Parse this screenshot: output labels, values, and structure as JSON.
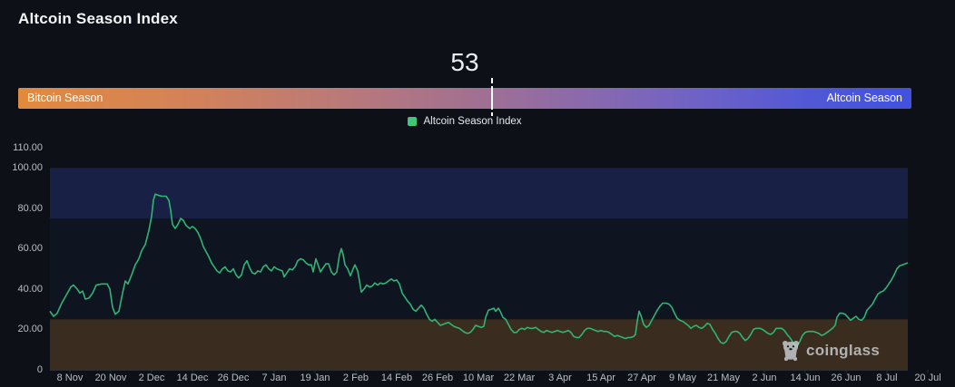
{
  "page": {
    "title": "Altcoin Season Index",
    "background": "#0d1117"
  },
  "gauge": {
    "value": "53",
    "left_label": "Bitcoin Season",
    "right_label": "Altcoin Season",
    "marker_percent": 53,
    "gradient_left_color": "#e18a3e",
    "gradient_right_color": "#4152df"
  },
  "legend": {
    "label": "Altcoin Season Index",
    "swatch_color": "#3ec878"
  },
  "watermark": {
    "text": "coinglass"
  },
  "chart_data": {
    "type": "line",
    "title": "Altcoin Season Index",
    "series_name": "Altcoin Season Index",
    "line_color": "#30b474",
    "ylim": [
      0,
      110
    ],
    "grid": false,
    "y_ticks": [
      {
        "label": "110.00",
        "value": 110
      },
      {
        "label": "100.00",
        "value": 100
      },
      {
        "label": "80.00",
        "value": 80
      },
      {
        "label": "60.00",
        "value": 60
      },
      {
        "label": "40.00",
        "value": 40
      },
      {
        "label": "20.00",
        "value": 20
      },
      {
        "label": "0",
        "value": 0
      }
    ],
    "x_tick_labels": [
      "8 Nov",
      "20 Nov",
      "2 Dec",
      "14 Dec",
      "26 Dec",
      "7 Jan",
      "19 Jan",
      "2 Feb",
      "14 Feb",
      "26 Feb",
      "10 Mar",
      "22 Mar",
      "3 Apr",
      "15 Apr",
      "27 Apr",
      "9 May",
      "21 May",
      "2 Jun",
      "14 Jun",
      "26 Jun",
      "8 Jul",
      "20 Jul"
    ],
    "bands": [
      {
        "name": "altcoin-zone",
        "from": 75,
        "to": 100,
        "color": "#182145"
      },
      {
        "name": "bitcoin-zone",
        "from": 0,
        "to": 25,
        "color": "#3a2c1e"
      }
    ],
    "plot_bg_color": "#0e1420",
    "x_span_units": 945,
    "points": [
      [
        0,
        29
      ],
      [
        4,
        26.5
      ],
      [
        8,
        28
      ],
      [
        13,
        33
      ],
      [
        18,
        37
      ],
      [
        23,
        41
      ],
      [
        26,
        42
      ],
      [
        30,
        40
      ],
      [
        33,
        38
      ],
      [
        36,
        39
      ],
      [
        39,
        35
      ],
      [
        43,
        35.5
      ],
      [
        47,
        38
      ],
      [
        51,
        42
      ],
      [
        57,
        42.5
      ],
      [
        63,
        42.5
      ],
      [
        66,
        40
      ],
      [
        69,
        31
      ],
      [
        72,
        27.5
      ],
      [
        76,
        29
      ],
      [
        80,
        38
      ],
      [
        83,
        44
      ],
      [
        86,
        42.5
      ],
      [
        90,
        47
      ],
      [
        94,
        52
      ],
      [
        98,
        55
      ],
      [
        101,
        59
      ],
      [
        105,
        62
      ],
      [
        109,
        69
      ],
      [
        112,
        76
      ],
      [
        114,
        84
      ],
      [
        116,
        87
      ],
      [
        119,
        86.5
      ],
      [
        123,
        86
      ],
      [
        128,
        86
      ],
      [
        131,
        84
      ],
      [
        133,
        79
      ],
      [
        135,
        72
      ],
      [
        138,
        70
      ],
      [
        141,
        72
      ],
      [
        144,
        75
      ],
      [
        147,
        74
      ],
      [
        150,
        71.5
      ],
      [
        154,
        70
      ],
      [
        157,
        71
      ],
      [
        160,
        70
      ],
      [
        163,
        68
      ],
      [
        166,
        65
      ],
      [
        169,
        61
      ],
      [
        172,
        58.5
      ],
      [
        175,
        56
      ],
      [
        178,
        53
      ],
      [
        181,
        51
      ],
      [
        184,
        49
      ],
      [
        187,
        48
      ],
      [
        190,
        50
      ],
      [
        193,
        51
      ],
      [
        196,
        49
      ],
      [
        199,
        48.5
      ],
      [
        202,
        50
      ],
      [
        205,
        47
      ],
      [
        208,
        45.5
      ],
      [
        211,
        47
      ],
      [
        214,
        52
      ],
      [
        217,
        54
      ],
      [
        220,
        50.5
      ],
      [
        223,
        48
      ],
      [
        226,
        47.5
      ],
      [
        229,
        49
      ],
      [
        232,
        48.5
      ],
      [
        235,
        51
      ],
      [
        238,
        52
      ],
      [
        241,
        50
      ],
      [
        244,
        49
      ],
      [
        247,
        51
      ],
      [
        250,
        50
      ],
      [
        253,
        49.5
      ],
      [
        256,
        49
      ],
      [
        258,
        46
      ],
      [
        261,
        48
      ],
      [
        264,
        50
      ],
      [
        267,
        49.5
      ],
      [
        270,
        51
      ],
      [
        273,
        54
      ],
      [
        276,
        55
      ],
      [
        279,
        54.5
      ],
      [
        282,
        53
      ],
      [
        285,
        52
      ],
      [
        288,
        52
      ],
      [
        290,
        48.5
      ],
      [
        293,
        55
      ],
      [
        295,
        52.5
      ],
      [
        298,
        48.5
      ],
      [
        301,
        50.5
      ],
      [
        304,
        52.5
      ],
      [
        307,
        52.5
      ],
      [
        310,
        48.5
      ],
      [
        313,
        47
      ],
      [
        316,
        48.5
      ],
      [
        319,
        57
      ],
      [
        321,
        60
      ],
      [
        323,
        57
      ],
      [
        325,
        52
      ],
      [
        328,
        50
      ],
      [
        331,
        46.5
      ],
      [
        334,
        50
      ],
      [
        336,
        52
      ],
      [
        339,
        49
      ],
      [
        341,
        44
      ],
      [
        343,
        38.5
      ],
      [
        346,
        40
      ],
      [
        349,
        42
      ],
      [
        352,
        41
      ],
      [
        355,
        41.5
      ],
      [
        358,
        43
      ],
      [
        361,
        42
      ],
      [
        364,
        43
      ],
      [
        367,
        42.5
      ],
      [
        370,
        43
      ],
      [
        373,
        44
      ],
      [
        376,
        45
      ],
      [
        379,
        44
      ],
      [
        382,
        44.5
      ],
      [
        385,
        42.5
      ],
      [
        388,
        38
      ],
      [
        391,
        36
      ],
      [
        394,
        34
      ],
      [
        397,
        32.5
      ],
      [
        400,
        30
      ],
      [
        403,
        29
      ],
      [
        406,
        30.5
      ],
      [
        409,
        32
      ],
      [
        412,
        30.5
      ],
      [
        415,
        27.5
      ],
      [
        418,
        25
      ],
      [
        421,
        24
      ],
      [
        424,
        25
      ],
      [
        427,
        23.5
      ],
      [
        430,
        22
      ],
      [
        433,
        22.5
      ],
      [
        436,
        23
      ],
      [
        439,
        23.5
      ],
      [
        442,
        22.5
      ],
      [
        445,
        21.5
      ],
      [
        448,
        21
      ],
      [
        451,
        20.5
      ],
      [
        454,
        19.5
      ],
      [
        457,
        18.5
      ],
      [
        460,
        18
      ],
      [
        463,
        18.5
      ],
      [
        466,
        20
      ],
      [
        469,
        22
      ],
      [
        472,
        21.5
      ],
      [
        475,
        21
      ],
      [
        478,
        21.5
      ],
      [
        480,
        26
      ],
      [
        483,
        29.5
      ],
      [
        486,
        30
      ],
      [
        489,
        30.5
      ],
      [
        491,
        29
      ],
      [
        494,
        30.5
      ],
      [
        496,
        29
      ],
      [
        499,
        26
      ],
      [
        502,
        25
      ],
      [
        505,
        22.5
      ],
      [
        508,
        20
      ],
      [
        511,
        18.5
      ],
      [
        514,
        18.5
      ],
      [
        517,
        20
      ],
      [
        520,
        20.5
      ],
      [
        523,
        20
      ],
      [
        526,
        21
      ],
      [
        529,
        20.5
      ],
      [
        532,
        20.5
      ],
      [
        535,
        21
      ],
      [
        538,
        20
      ],
      [
        541,
        19
      ],
      [
        544,
        18.5
      ],
      [
        547,
        19.5
      ],
      [
        550,
        19
      ],
      [
        553,
        18.5
      ],
      [
        556,
        19
      ],
      [
        559,
        19.5
      ],
      [
        562,
        19
      ],
      [
        565,
        18.5
      ],
      [
        568,
        19
      ],
      [
        571,
        19.5
      ],
      [
        574,
        18.5
      ],
      [
        577,
        16.5
      ],
      [
        580,
        16
      ],
      [
        583,
        16
      ],
      [
        586,
        17.5
      ],
      [
        589,
        19.5
      ],
      [
        592,
        20.5
      ],
      [
        595,
        20.5
      ],
      [
        598,
        20
      ],
      [
        601,
        19.5
      ],
      [
        604,
        19
      ],
      [
        607,
        19.5
      ],
      [
        610,
        19
      ],
      [
        613,
        19
      ],
      [
        616,
        18.5
      ],
      [
        619,
        17.5
      ],
      [
        622,
        16.5
      ],
      [
        625,
        17
      ],
      [
        628,
        16.5
      ],
      [
        631,
        16
      ],
      [
        634,
        15.5
      ],
      [
        637,
        16
      ],
      [
        640,
        16
      ],
      [
        643,
        16.5
      ],
      [
        645,
        17.5
      ],
      [
        647,
        24
      ],
      [
        649,
        29
      ],
      [
        651,
        27
      ],
      [
        654,
        22.5
      ],
      [
        657,
        21
      ],
      [
        660,
        22
      ],
      [
        663,
        24.5
      ],
      [
        666,
        27
      ],
      [
        669,
        29.5
      ],
      [
        672,
        31.5
      ],
      [
        675,
        33
      ],
      [
        679,
        33
      ],
      [
        682,
        32.5
      ],
      [
        685,
        31
      ],
      [
        688,
        28
      ],
      [
        691,
        25.5
      ],
      [
        694,
        24.5
      ],
      [
        697,
        24
      ],
      [
        700,
        23
      ],
      [
        703,
        22
      ],
      [
        706,
        20.5
      ],
      [
        709,
        21.5
      ],
      [
        712,
        22
      ],
      [
        715,
        21
      ],
      [
        718,
        20.5
      ],
      [
        721,
        21.5
      ],
      [
        724,
        23
      ],
      [
        727,
        22.5
      ],
      [
        730,
        20
      ],
      [
        733,
        18
      ],
      [
        736,
        15.5
      ],
      [
        739,
        13.5
      ],
      [
        742,
        13
      ],
      [
        745,
        14
      ],
      [
        748,
        16.5
      ],
      [
        751,
        18.5
      ],
      [
        754,
        19
      ],
      [
        757,
        19
      ],
      [
        760,
        18
      ],
      [
        763,
        16
      ],
      [
        766,
        14.5
      ],
      [
        769,
        15.5
      ],
      [
        772,
        17.5
      ],
      [
        775,
        20
      ],
      [
        778,
        20.5
      ],
      [
        782,
        20.5
      ],
      [
        785,
        20
      ],
      [
        788,
        19
      ],
      [
        791,
        18
      ],
      [
        794,
        17.5
      ],
      [
        797,
        18.5
      ],
      [
        800,
        20.5
      ],
      [
        803,
        20.5
      ],
      [
        806,
        20.5
      ],
      [
        809,
        19.5
      ],
      [
        812,
        17.5
      ],
      [
        815,
        16
      ],
      [
        818,
        14
      ],
      [
        821,
        12
      ],
      [
        823,
        11.5
      ],
      [
        826,
        14
      ],
      [
        829,
        17
      ],
      [
        832,
        18.5
      ],
      [
        835,
        19
      ],
      [
        838,
        19
      ],
      [
        841,
        19
      ],
      [
        844,
        18.5
      ],
      [
        847,
        18
      ],
      [
        850,
        17
      ],
      [
        853,
        17.5
      ],
      [
        856,
        18.5
      ],
      [
        859,
        19.5
      ],
      [
        862,
        20.5
      ],
      [
        865,
        22
      ],
      [
        867,
        26
      ],
      [
        870,
        28
      ],
      [
        873,
        28
      ],
      [
        876,
        27.5
      ],
      [
        879,
        26
      ],
      [
        882,
        24.5
      ],
      [
        885,
        25.5
      ],
      [
        888,
        26.5
      ],
      [
        891,
        25
      ],
      [
        894,
        24.5
      ],
      [
        897,
        26
      ],
      [
        900,
        29.5
      ],
      [
        903,
        31
      ],
      [
        906,
        32.5
      ],
      [
        909,
        35
      ],
      [
        912,
        37.5
      ],
      [
        915,
        38.5
      ],
      [
        918,
        39
      ],
      [
        921,
        40.5
      ],
      [
        924,
        42.5
      ],
      [
        927,
        44.5
      ],
      [
        930,
        47
      ],
      [
        933,
        50
      ],
      [
        936,
        51.5
      ],
      [
        939,
        52
      ],
      [
        942,
        52.5
      ],
      [
        945,
        53
      ]
    ]
  }
}
